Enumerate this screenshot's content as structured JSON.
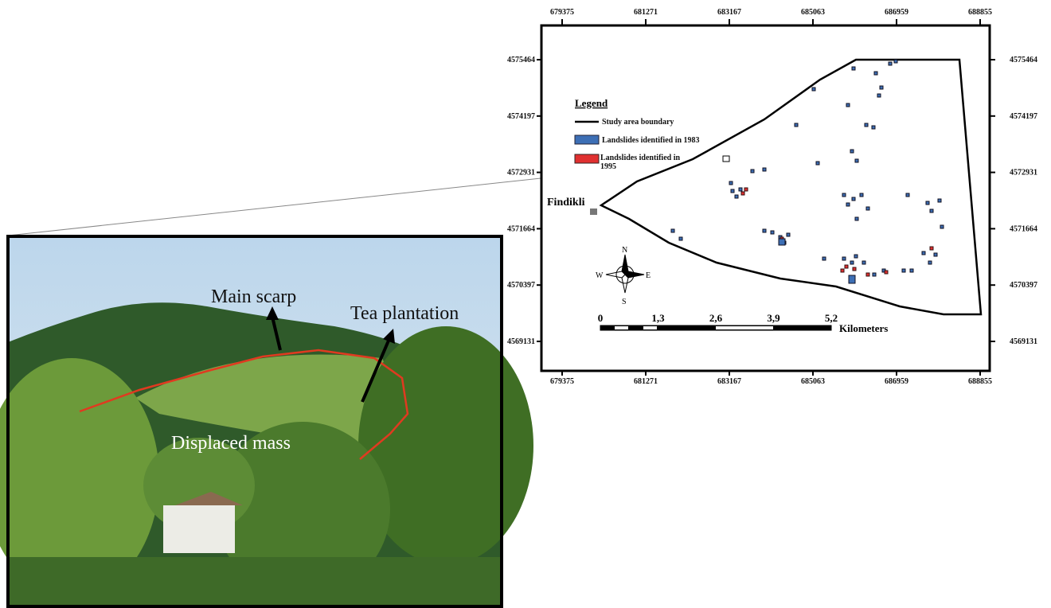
{
  "map": {
    "x_ticks": [
      679375,
      681271,
      683167,
      685063,
      686959,
      688855
    ],
    "y_ticks": [
      4575464,
      4574197,
      4572931,
      4571664,
      4570397,
      4569131
    ],
    "legend": {
      "title": "Legend",
      "items": [
        "Study area boundary",
        "Landslides identified in 1983",
        "Landslides identified in 1995"
      ]
    },
    "place_label": "Findikli",
    "compass": {
      "n": "N",
      "e": "E",
      "s": "S",
      "w": "W"
    },
    "scale_bar": {
      "labels": [
        "0",
        "1,3",
        "2,6",
        "3,9",
        "5,2"
      ],
      "unit": "Kilometers"
    }
  },
  "photo": {
    "labels": [
      "Main scarp",
      "Tea plantation",
      "Displaced mass"
    ]
  }
}
